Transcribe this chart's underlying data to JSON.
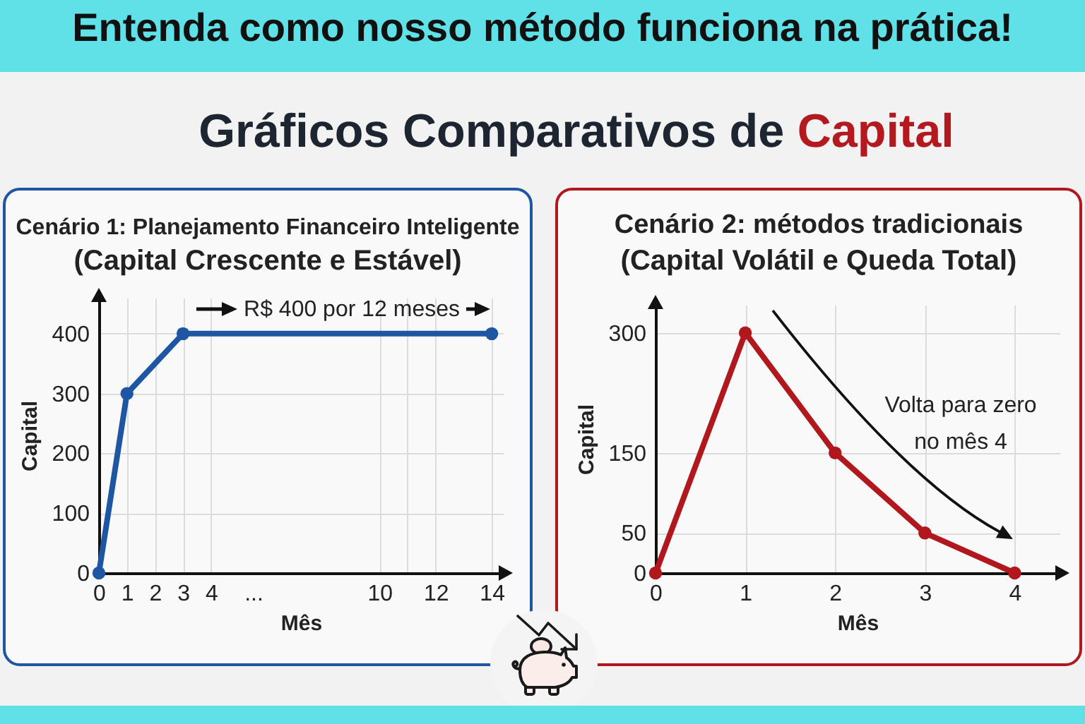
{
  "chart_data": [
    {
      "type": "other",
      "title": "Entenda como nosso método funciona na prática!",
      "subtitle": "Gráficos Comparativos de Capital"
    },
    {
      "type": "line",
      "title": "Cenário 1: Planejamento Financeiro Inteligente",
      "subtitle": "(Capital Crescente e Estável)",
      "xlabel": "Mês",
      "ylabel": "Capital",
      "x": [
        0,
        1,
        3,
        14
      ],
      "values": [
        0,
        300,
        400,
        400
      ],
      "color": "#1e56a3",
      "xlim": [
        0,
        14.4
      ],
      "ylim": [
        0,
        460
      ],
      "xticks": [
        0,
        1,
        2,
        3,
        4,
        {
          "value": 5.5,
          "label": "..."
        },
        10,
        {
          "value": 11,
          "label": null
        },
        12,
        14
      ],
      "yticks": [
        0,
        100,
        200,
        300,
        400
      ],
      "grid": true,
      "marker": "circle",
      "annotations": [
        "R$ 400 por 12 meses"
      ]
    },
    {
      "type": "line",
      "title": "Cenário 2: métodos tradicionais",
      "subtitle": "(Capital Volátil e Queda Total)",
      "xlabel": "Mês",
      "ylabel": "Capital",
      "x": [
        0,
        1,
        2,
        3,
        4
      ],
      "values": [
        0,
        300,
        150,
        50,
        0
      ],
      "color": "#b0181d",
      "xlim": [
        0,
        4.5
      ],
      "ylim": [
        0,
        335
      ],
      "xticks": [
        0,
        1,
        2,
        3,
        4
      ],
      "yticks": [
        0,
        50,
        150,
        300
      ],
      "grid": true,
      "marker": "circle",
      "annotations": [
        "Volta para zero no mês 4"
      ]
    }
  ]
}
